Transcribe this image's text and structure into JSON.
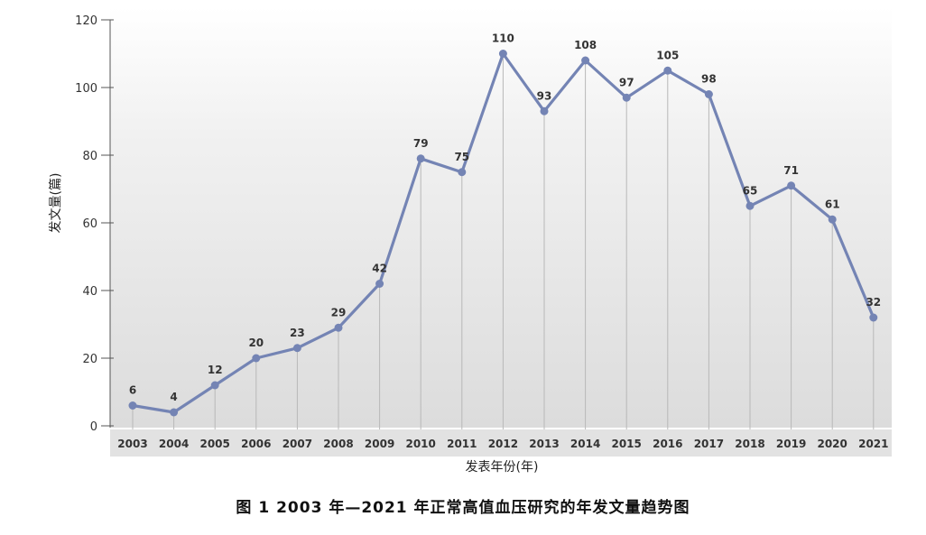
{
  "caption": "图 1   2003 年—2021 年正常高值血压研究的年发文量趋势图",
  "chart_data": {
    "type": "line",
    "categories": [
      "2003",
      "2004",
      "2005",
      "2006",
      "2007",
      "2008",
      "2009",
      "2010",
      "2011",
      "2012",
      "2013",
      "2014",
      "2015",
      "2016",
      "2017",
      "2018",
      "2019",
      "2020",
      "2021"
    ],
    "values": [
      6,
      4,
      12,
      20,
      23,
      29,
      42,
      79,
      75,
      110,
      93,
      108,
      97,
      105,
      98,
      65,
      71,
      61,
      32
    ],
    "title": "",
    "xlabel": "发表年份(年)",
    "ylabel": "发文量(篇)",
    "ylim": [
      0,
      120
    ],
    "yticks": [
      0,
      20,
      40,
      60,
      80,
      100,
      120
    ],
    "grid": "vertical drop lines at each point",
    "legend": "none",
    "colors": {
      "line": "#7484b4",
      "marker": "#7484b4",
      "drop": "#b8b8b8"
    }
  }
}
